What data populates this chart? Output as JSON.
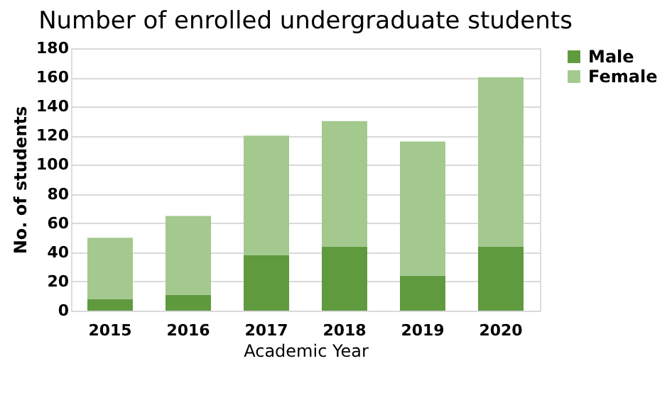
{
  "chart_data": {
    "type": "bar",
    "title": "Number of enrolled undergraduate students",
    "xlabel": "Academic Year",
    "ylabel": "No. of students",
    "categories": [
      "2015",
      "2016",
      "2017",
      "2018",
      "2019",
      "2020"
    ],
    "stacked": true,
    "series": [
      {
        "name": "Male",
        "color": "#5f9a3e",
        "values": [
          8,
          11,
          38,
          44,
          24,
          44
        ]
      },
      {
        "name": "Female",
        "color": "#a3c98f",
        "values": [
          42,
          54,
          82,
          86,
          92,
          116
        ]
      }
    ],
    "ylim": [
      0,
      180
    ],
    "yticks": [
      0,
      20,
      40,
      60,
      80,
      100,
      120,
      140,
      160,
      180
    ],
    "grid": "y",
    "legend": "top right"
  }
}
